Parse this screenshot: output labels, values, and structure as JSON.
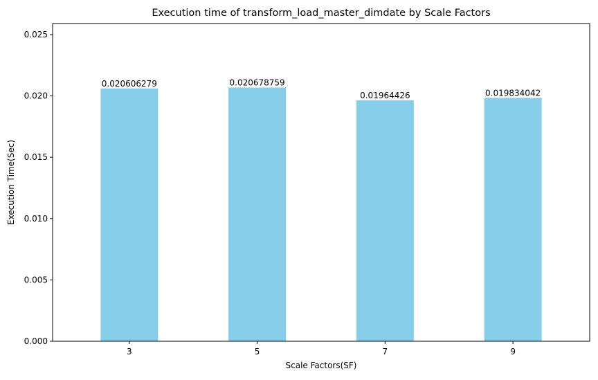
{
  "chart_data": {
    "type": "bar",
    "title": "Execution time of transform_load_master_dimdate by Scale Factors",
    "xlabel": "Scale Factors(SF)",
    "ylabel": "Execution Time(Sec)",
    "categories": [
      "3",
      "5",
      "7",
      "9"
    ],
    "values": [
      0.020606279,
      0.020678759,
      0.01964426,
      0.019834042
    ],
    "data_labels": [
      "0.020606279",
      "0.020678759",
      "0.01964426",
      "0.019834042"
    ],
    "ylim": [
      0,
      0.0259
    ],
    "yticks": [
      0.0,
      0.005,
      0.01,
      0.015,
      0.02,
      0.025
    ],
    "ytick_labels": [
      "0.000",
      "0.005",
      "0.010",
      "0.015",
      "0.020",
      "0.025"
    ],
    "grid": false,
    "legend": "none",
    "bar_color": "#87CEEB"
  }
}
